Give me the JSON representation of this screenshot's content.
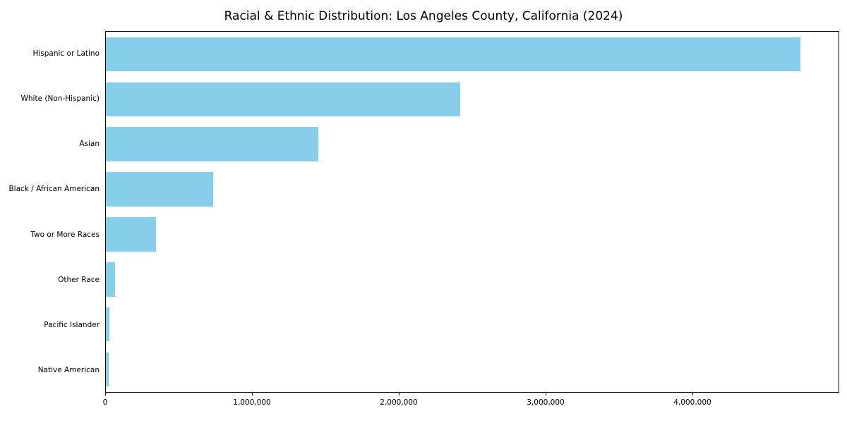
{
  "chart_data": {
    "type": "bar",
    "orientation": "horizontal",
    "title": "Racial & Ethnic Distribution: Los Angeles County, California (2024)",
    "categories": [
      "Hispanic or Latino",
      "White (Non-Hispanic)",
      "Asian",
      "Black / African American",
      "Two or More Races",
      "Other Race",
      "Pacific Islander",
      "Native American"
    ],
    "values": [
      4740000,
      2420000,
      1450000,
      730000,
      340000,
      65000,
      25000,
      18000
    ],
    "xlabel": "",
    "ylabel": "",
    "xlim": [
      0,
      5000000
    ],
    "xticks": [
      0,
      1000000,
      2000000,
      3000000,
      4000000
    ],
    "xtick_labels": [
      "0",
      "1,000,000",
      "2,000,000",
      "3,000,000",
      "4,000,000"
    ],
    "bar_color": "#87CEEB",
    "grid": false,
    "legend": "none"
  }
}
